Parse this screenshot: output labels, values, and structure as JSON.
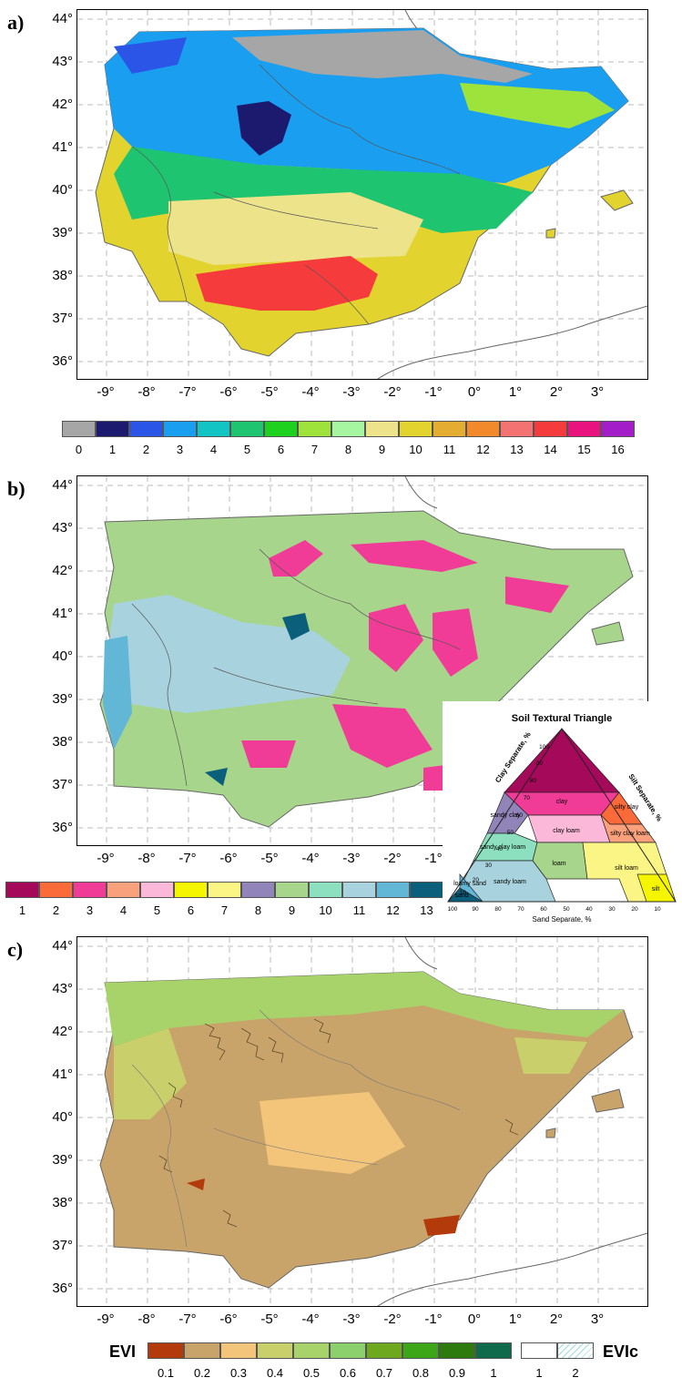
{
  "panels": [
    {
      "letter": "a)",
      "y_ticks": [
        "44°",
        "43°",
        "42°",
        "41°",
        "40°",
        "39°",
        "38°",
        "37°",
        "36°"
      ],
      "x_ticks": [
        "-9°",
        "-8°",
        "-7°",
        "-6°",
        "-5°",
        "-4°",
        "-3°",
        "-2°",
        "-1°",
        "0°",
        "1°",
        "2°",
        "3°"
      ],
      "legend": {
        "labels": [
          "0",
          "1",
          "2",
          "3",
          "4",
          "5",
          "6",
          "7",
          "8",
          "9",
          "10",
          "11",
          "12",
          "13",
          "14",
          "15",
          "16"
        ],
        "colors": [
          "#a6a6a6",
          "#1c1a6e",
          "#2b55e6",
          "#1a9ff0",
          "#12c4c4",
          "#1ec46f",
          "#1ed11e",
          "#9ee23c",
          "#a6f5a0",
          "#ede38a",
          "#e3d32e",
          "#e4ad31",
          "#f28a2c",
          "#f57272",
          "#f53b3b",
          "#e8137f",
          "#a31ec8"
        ]
      }
    },
    {
      "letter": "b)",
      "y_ticks": [
        "44°",
        "43°",
        "42°",
        "41°",
        "40°",
        "39°",
        "38°",
        "37°",
        "36°"
      ],
      "x_ticks": [
        "-9°",
        "-8°",
        "-7°",
        "-6°",
        "-5°",
        "-4°",
        "-3°",
        "-2°",
        "-1°"
      ],
      "legend": {
        "labels": [
          "1",
          "2",
          "3",
          "4",
          "5",
          "6",
          "7",
          "8",
          "9",
          "10",
          "11",
          "12",
          "13"
        ],
        "colors": [
          "#a50a5a",
          "#fb6b3a",
          "#f03c96",
          "#f9a07c",
          "#fbb8d8",
          "#f5f500",
          "#fbf585",
          "#9184b8",
          "#a8d58c",
          "#8ce0c0",
          "#a8d3de",
          "#62b6d6",
          "#0b5f7a"
        ]
      },
      "triangle": {
        "title": "Soil Textural Triangle",
        "clay_axis": "Clay Separate, %",
        "silt_axis": "Silt Separate, %",
        "sand_axis": "Sand Separate, %",
        "classes": [
          "clay",
          "silty clay",
          "sandy clay",
          "clay loam",
          "silty clay loam",
          "sandy clay loam",
          "loam",
          "silt loam",
          "sandy loam",
          "silt",
          "loamy sand",
          "sand"
        ],
        "left_ticks": [
          "100",
          "90",
          "80",
          "70",
          "60",
          "50",
          "40",
          "30",
          "20",
          "10"
        ],
        "bottom_ticks": [
          "100",
          "90",
          "80",
          "70",
          "60",
          "50",
          "40",
          "30",
          "20",
          "10"
        ]
      }
    },
    {
      "letter": "c)",
      "y_ticks": [
        "44°",
        "43°",
        "42°",
        "41°",
        "40°",
        "39°",
        "38°",
        "37°",
        "36°"
      ],
      "x_ticks": [
        "-9°",
        "-8°",
        "-7°",
        "-6°",
        "-5°",
        "-4°",
        "-3°",
        "-2°",
        "-1°",
        "0°",
        "1°",
        "2°",
        "3°"
      ],
      "legend": {
        "evi_title": "EVI",
        "evi_labels": [
          "0.1",
          "0.2",
          "0.3",
          "0.4",
          "0.5",
          "0.6",
          "0.7",
          "0.8",
          "0.9",
          "1"
        ],
        "evi_colors": [
          "#b33a0a",
          "#c9a46a",
          "#f2c57a",
          "#c9cf6a",
          "#a8d26a",
          "#8cd06e",
          "#6ea81e",
          "#3da618",
          "#2d7a0e",
          "#0e6a4a"
        ],
        "evic_title": "EVIc",
        "evic_labels": [
          "1",
          "2"
        ]
      }
    }
  ]
}
